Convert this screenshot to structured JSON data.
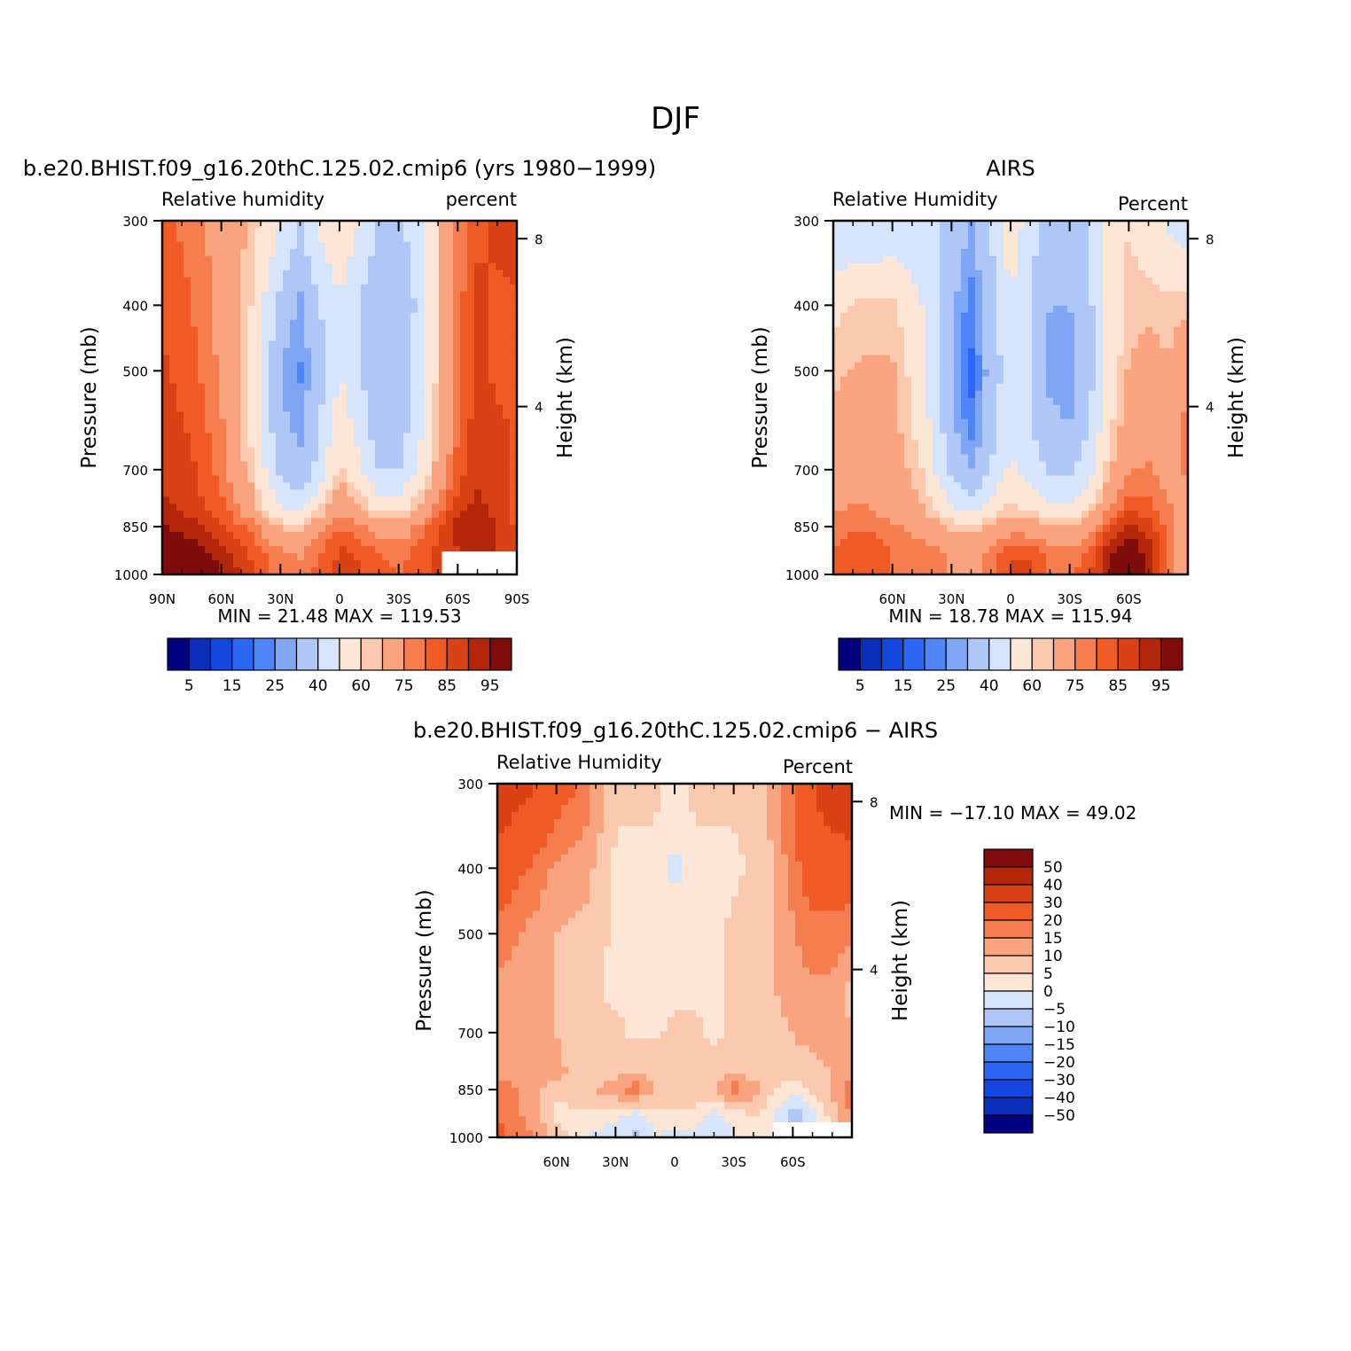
{
  "figure": {
    "season": "DJF",
    "colors": {
      "rh": [
        "#000080",
        "#0a2dba",
        "#1447e0",
        "#2b66f5",
        "#4f84f6",
        "#7fa6f4",
        "#afc7f6",
        "#d6e5fb",
        "#fde6d5",
        "#fbc9ad",
        "#f9a47e",
        "#f57d4f",
        "#ef5a25",
        "#d94214",
        "#b3260a",
        "#7f0b0b"
      ],
      "diff": [
        "#000080",
        "#0a2dba",
        "#1447e0",
        "#2b66f5",
        "#4f84f6",
        "#7fa6f4",
        "#afc7f6",
        "#d6e5fb",
        "#fde6d5",
        "#fbc9ad",
        "#f9a47e",
        "#f57d4f",
        "#ef5a25",
        "#d94214",
        "#b3260a",
        "#7f0b0b"
      ]
    }
  },
  "chart_data": [
    {
      "type": "heatmap",
      "id": "model",
      "title": "b.e20.BHIST.f09_g16.20thC.125.02.cmip6 (yrs 1980−1999)",
      "left_label": "Relative  humidity",
      "right_label": "percent",
      "ylabel": "Pressure  (mb)",
      "y2label": "Height  (km)",
      "xlim": [
        90,
        -90
      ],
      "ylim": [
        1000,
        300
      ],
      "xticks": [
        {
          "v": 90,
          "l": "90N"
        },
        {
          "v": 60,
          "l": "60N"
        },
        {
          "v": 30,
          "l": "30N"
        },
        {
          "v": 0,
          "l": "0"
        },
        {
          "v": -30,
          "l": "30S"
        },
        {
          "v": -60,
          "l": "60S"
        },
        {
          "v": -90,
          "l": "90S"
        }
      ],
      "yticks": [
        300,
        400,
        500,
        700,
        850,
        1000
      ],
      "y2ticks": [
        {
          "h": 8,
          "l": "8"
        },
        {
          "h": 4,
          "l": "4"
        }
      ],
      "minmax": "MIN =   21.48   MAX =  119.53",
      "mask": [
        -52,
        -90,
        925,
        1000
      ],
      "lat": [
        90,
        75,
        60,
        45,
        30,
        20,
        10,
        0,
        -10,
        -20,
        -30,
        -40,
        -50,
        -60,
        -70,
        -80,
        -90
      ],
      "lev": [
        300,
        400,
        500,
        600,
        700,
        800,
        850,
        925,
        1000
      ],
      "z": [
        [
          82,
          78,
          72,
          64,
          50,
          40,
          52,
          60,
          50,
          40,
          38,
          46,
          62,
          76,
          84,
          86,
          88
        ],
        [
          84,
          80,
          72,
          60,
          36,
          28,
          40,
          48,
          40,
          30,
          32,
          42,
          62,
          78,
          86,
          84,
          84
        ],
        [
          86,
          82,
          74,
          58,
          30,
          24,
          36,
          50,
          42,
          30,
          32,
          44,
          62,
          78,
          86,
          84,
          84
        ],
        [
          88,
          84,
          76,
          58,
          32,
          28,
          40,
          56,
          46,
          32,
          34,
          46,
          64,
          80,
          88,
          86,
          84
        ],
        [
          88,
          86,
          78,
          62,
          36,
          32,
          44,
          62,
          52,
          40,
          40,
          50,
          68,
          82,
          88,
          86,
          84
        ],
        [
          92,
          88,
          82,
          70,
          50,
          46,
          60,
          74,
          66,
          56,
          56,
          66,
          78,
          88,
          92,
          88,
          84
        ],
        [
          96,
          92,
          86,
          78,
          64,
          62,
          72,
          80,
          76,
          70,
          70,
          76,
          84,
          92,
          94,
          90,
          84
        ],
        [
          100,
          98,
          92,
          84,
          76,
          74,
          80,
          86,
          84,
          80,
          78,
          82,
          86,
          90,
          92,
          90,
          86
        ],
        [
          104,
          100,
          96,
          86,
          78,
          78,
          82,
          86,
          86,
          82,
          80,
          82,
          86,
          88,
          90,
          88,
          86
        ]
      ],
      "colorbar_labels": [
        "5",
        "15",
        "25",
        "40",
        "60",
        "75",
        "85",
        "95"
      ]
    },
    {
      "type": "heatmap",
      "id": "obs",
      "title": "AIRS",
      "left_label": "Relative  Humidity",
      "right_label": "Percent",
      "ylabel": "Pressure  (mb)",
      "y2label": "Height  (km)",
      "xlim": [
        90,
        -90
      ],
      "ylim": [
        1000,
        300
      ],
      "xticks": [
        {
          "v": 60,
          "l": "60N"
        },
        {
          "v": 30,
          "l": "30N"
        },
        {
          "v": 0,
          "l": "0"
        },
        {
          "v": -30,
          "l": "30S"
        },
        {
          "v": -60,
          "l": "60S"
        }
      ],
      "yticks": [
        300,
        400,
        500,
        700,
        850,
        1000
      ],
      "y2ticks": [
        {
          "h": 8,
          "l": "8"
        },
        {
          "h": 4,
          "l": "4"
        }
      ],
      "minmax": "MIN =   18.78   MAX =  115.94",
      "mask": null,
      "lat": [
        90,
        75,
        60,
        45,
        30,
        20,
        10,
        0,
        -10,
        -20,
        -30,
        -40,
        -50,
        -60,
        -70,
        -80,
        -90
      ],
      "lev": [
        300,
        400,
        500,
        600,
        700,
        800,
        850,
        925,
        1000
      ],
      "z": [
        [
          40,
          40,
          42,
          44,
          36,
          30,
          40,
          58,
          44,
          36,
          36,
          40,
          52,
          60,
          54,
          48,
          44
        ],
        [
          58,
          62,
          62,
          50,
          32,
          22,
          36,
          48,
          40,
          30,
          30,
          38,
          52,
          62,
          64,
          62,
          64
        ],
        [
          64,
          66,
          66,
          54,
          30,
          18,
          34,
          46,
          40,
          28,
          26,
          36,
          54,
          66,
          68,
          66,
          72
        ],
        [
          66,
          70,
          68,
          56,
          32,
          22,
          36,
          48,
          40,
          32,
          30,
          40,
          58,
          70,
          72,
          70,
          78
        ],
        [
          70,
          72,
          70,
          60,
          38,
          30,
          40,
          52,
          46,
          38,
          38,
          46,
          64,
          74,
          76,
          72,
          76
        ],
        [
          74,
          76,
          72,
          66,
          52,
          46,
          54,
          62,
          58,
          52,
          50,
          60,
          74,
          84,
          82,
          76,
          70
        ],
        [
          78,
          80,
          76,
          72,
          64,
          62,
          66,
          72,
          70,
          66,
          64,
          72,
          84,
          92,
          88,
          78,
          66
        ],
        [
          80,
          84,
          80,
          78,
          74,
          72,
          76,
          84,
          84,
          78,
          76,
          82,
          94,
          100,
          92,
          80,
          66
        ],
        [
          82,
          84,
          80,
          78,
          74,
          72,
          78,
          86,
          86,
          80,
          78,
          84,
          96,
          104,
          92,
          80,
          66
        ]
      ],
      "colorbar_labels": [
        "5",
        "15",
        "25",
        "40",
        "60",
        "75",
        "85",
        "95"
      ]
    },
    {
      "type": "heatmap",
      "id": "diff",
      "title": "b.e20.BHIST.f09_g16.20thC.125.02.cmip6 − AIRS",
      "left_label": "Relative  Humidity",
      "right_label": "Percent",
      "ylabel": "Pressure  (mb)",
      "y2label": "Height  (km)",
      "xlim": [
        90,
        -90
      ],
      "ylim": [
        1000,
        300
      ],
      "xticks": [
        {
          "v": 60,
          "l": "60N"
        },
        {
          "v": 30,
          "l": "30N"
        },
        {
          "v": 0,
          "l": "0"
        },
        {
          "v": -30,
          "l": "30S"
        },
        {
          "v": -60,
          "l": "60S"
        }
      ],
      "yticks": [
        300,
        400,
        500,
        700,
        850,
        1000
      ],
      "y2ticks": [
        {
          "h": 8,
          "l": "8"
        },
        {
          "h": 4,
          "l": "4"
        }
      ],
      "minmax": "MIN = −17.10   MAX =   49.02",
      "mask": [
        -50,
        -90,
        950,
        1000
      ],
      "lat": [
        90,
        75,
        60,
        45,
        30,
        20,
        10,
        0,
        -10,
        -20,
        -30,
        -40,
        -50,
        -60,
        -70,
        -80,
        -90
      ],
      "lev": [
        300,
        400,
        500,
        600,
        700,
        800,
        850,
        925,
        1000
      ],
      "z": [
        [
          36,
          32,
          24,
          18,
          6,
          6,
          6,
          4,
          6,
          6,
          6,
          6,
          12,
          20,
          30,
          36,
          40
        ],
        [
          26,
          20,
          14,
          12,
          4,
          4,
          4,
          -2,
          4,
          4,
          4,
          6,
          10,
          18,
          24,
          24,
          24
        ],
        [
          18,
          14,
          10,
          8,
          4,
          4,
          4,
          4,
          4,
          4,
          6,
          8,
          10,
          14,
          18,
          18,
          16
        ],
        [
          14,
          12,
          10,
          6,
          4,
          4,
          4,
          4,
          4,
          4,
          6,
          6,
          10,
          14,
          14,
          14,
          8
        ],
        [
          12,
          12,
          10,
          6,
          6,
          4,
          4,
          6,
          6,
          4,
          6,
          6,
          6,
          10,
          12,
          12,
          10
        ],
        [
          12,
          12,
          12,
          6,
          8,
          10,
          8,
          8,
          8,
          8,
          10,
          8,
          6,
          8,
          8,
          10,
          12
        ],
        [
          18,
          14,
          6,
          8,
          14,
          18,
          10,
          8,
          8,
          10,
          18,
          12,
          6,
          2,
          6,
          10,
          18
        ],
        [
          20,
          14,
          4,
          4,
          2,
          -2,
          2,
          4,
          4,
          -2,
          2,
          6,
          0,
          -8,
          -2,
          8,
          16
        ],
        [
          22,
          16,
          8,
          0,
          -4,
          -6,
          0,
          -2,
          -2,
          -4,
          0,
          4,
          2,
          -12,
          -6,
          6,
          14
        ]
      ],
      "colorbar_labels": [
        "50",
        "40",
        "30",
        "20",
        "15",
        "10",
        "5",
        "0",
        "−5",
        "−10",
        "−15",
        "−20",
        "−30",
        "−40",
        "−50"
      ]
    }
  ]
}
